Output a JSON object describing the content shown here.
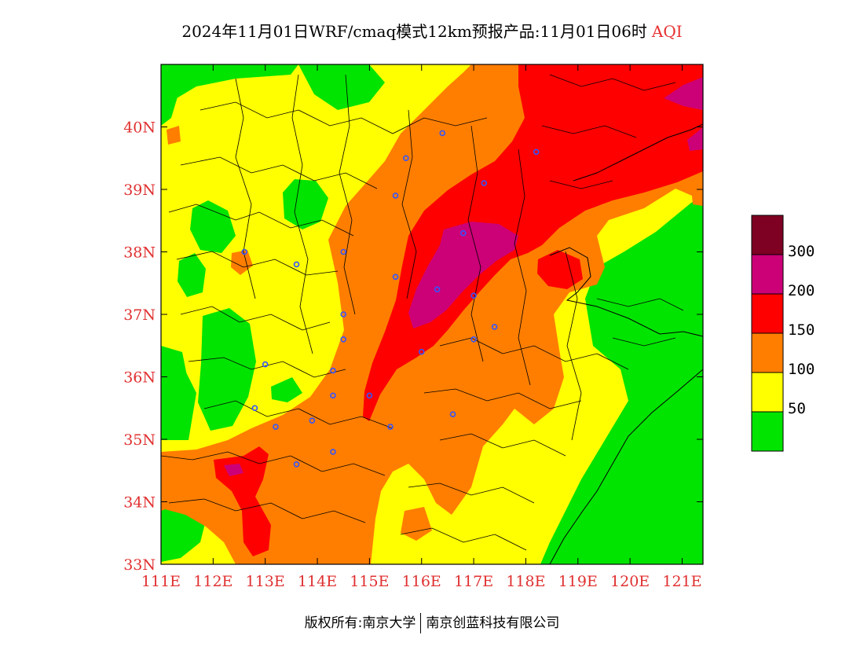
{
  "title": {
    "text": "2024年11月01日WRF/cmaq模式12km预报产品:11月01日06时",
    "variable": "AQI"
  },
  "map": {
    "lon_range": [
      111,
      121.4
    ],
    "lat_range": [
      33,
      41
    ],
    "x_ticks": [
      "111E",
      "112E",
      "113E",
      "114E",
      "115E",
      "116E",
      "117E",
      "118E",
      "119E",
      "120E",
      "121E"
    ],
    "y_ticks": [
      "33N",
      "34N",
      "35N",
      "36N",
      "37N",
      "38N",
      "39N",
      "40N"
    ]
  },
  "colorbar": {
    "labels": [
      "50",
      "100",
      "150",
      "200",
      "300"
    ],
    "colors": [
      "#00e400",
      "#ffff00",
      "#ff7e00",
      "#ff0000",
      "#cc0077",
      "#7e0023"
    ]
  },
  "footer": {
    "left": "版权所有:南京大学",
    "right": "南京创蓝科技有限公司"
  },
  "city_markers": [
    [
      116.4,
      39.9
    ],
    [
      115.7,
      39.5
    ],
    [
      117.2,
      39.1
    ],
    [
      118.2,
      39.6
    ],
    [
      115.5,
      38.9
    ],
    [
      114.5,
      38.0
    ],
    [
      115.5,
      37.6
    ],
    [
      116.3,
      37.4
    ],
    [
      116.8,
      38.3
    ],
    [
      117.0,
      37.3
    ],
    [
      112.6,
      38.0
    ],
    [
      113.6,
      37.8
    ],
    [
      114.5,
      37.0
    ],
    [
      114.5,
      36.6
    ],
    [
      114.3,
      36.1
    ],
    [
      113.0,
      36.2
    ],
    [
      112.8,
      35.5
    ],
    [
      113.2,
      35.2
    ],
    [
      113.9,
      35.3
    ],
    [
      114.3,
      35.7
    ],
    [
      115.0,
      35.7
    ],
    [
      116.0,
      36.4
    ],
    [
      117.0,
      36.6
    ],
    [
      117.4,
      36.8
    ],
    [
      116.6,
      35.4
    ],
    [
      115.4,
      35.2
    ],
    [
      114.3,
      34.8
    ],
    [
      113.6,
      34.6
    ]
  ]
}
